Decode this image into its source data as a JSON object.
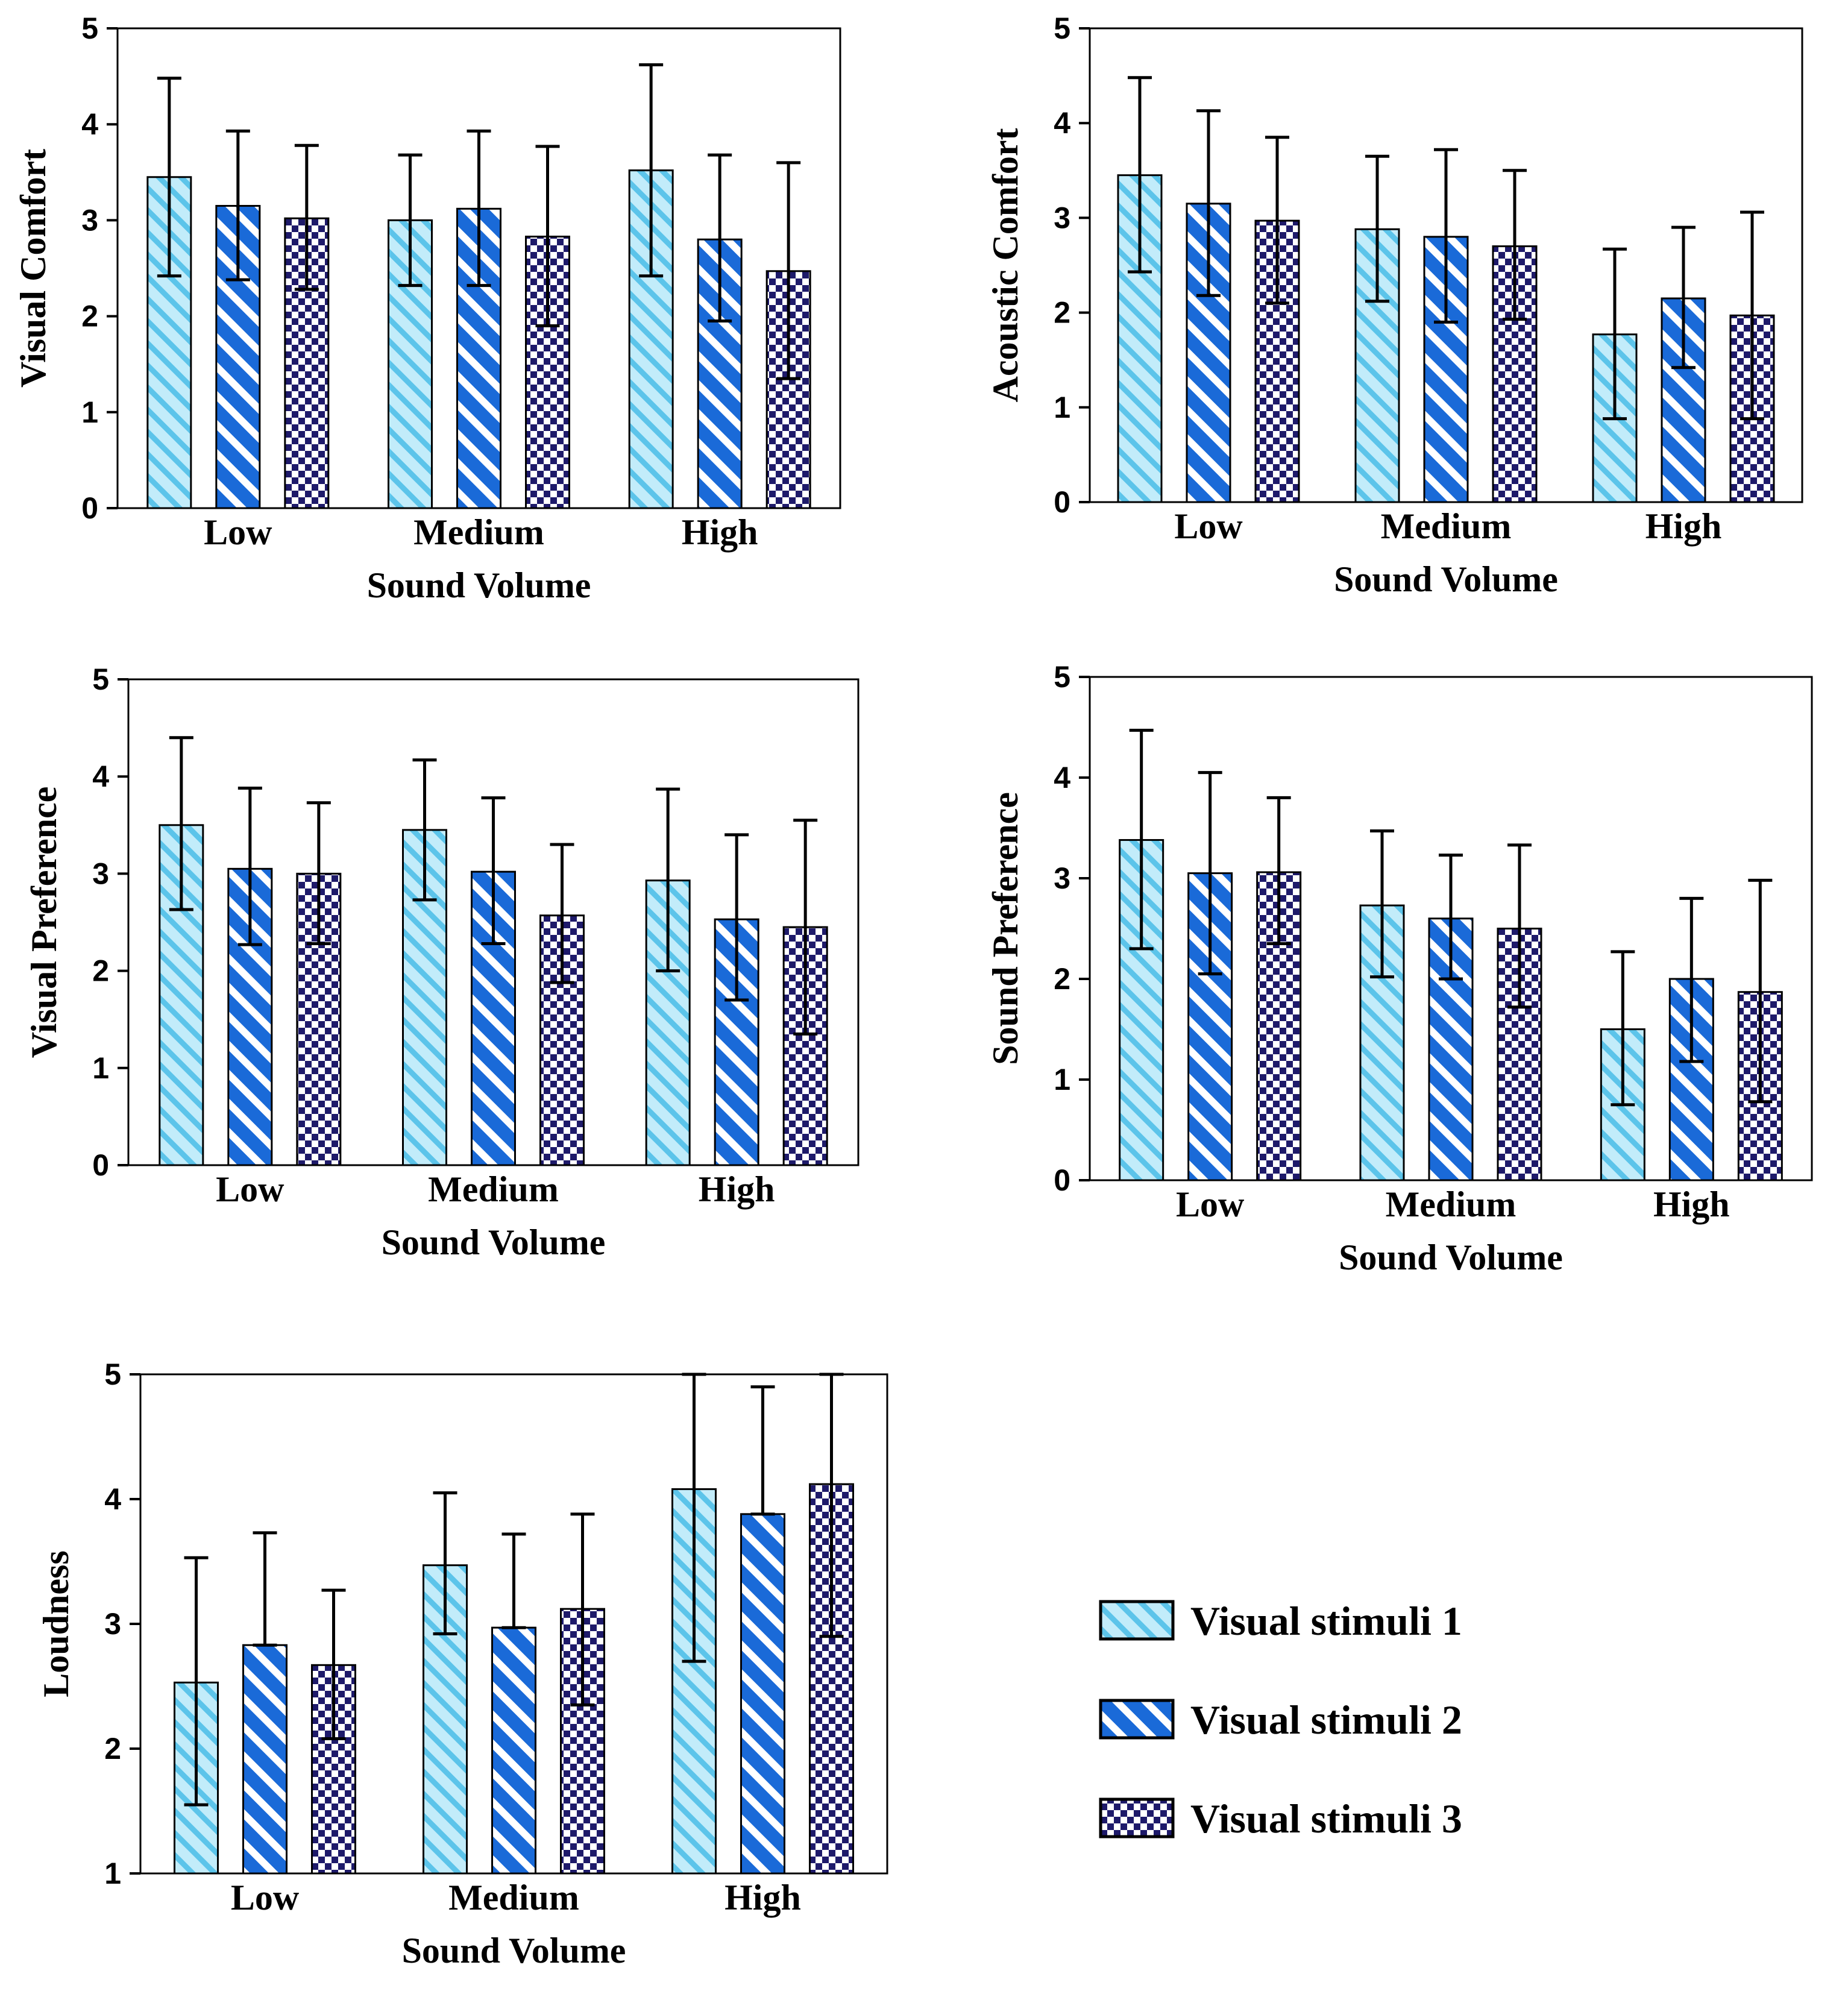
{
  "legend": {
    "series": [
      {
        "name": "Visual stimuli 1",
        "pattern": "stripes-thin",
        "fill": "#c2ecfa",
        "line": "#5cc4ea"
      },
      {
        "name": "Visual stimuli 2",
        "pattern": "stripes-wide",
        "fill": "#ffffff",
        "line": "#1a6ad8"
      },
      {
        "name": "Visual stimuli 3",
        "pattern": "checker",
        "fill": "#ffffff",
        "line": "#1e1a6a"
      }
    ]
  },
  "chart_data": [
    {
      "type": "bar",
      "id": "visual-comfort",
      "title": "",
      "xlabel": "Sound Volume",
      "ylabel": "Visual Comfort",
      "categories": [
        "Low",
        "Medium",
        "High"
      ],
      "ylim": [
        0,
        5
      ],
      "yticks": [
        0,
        1,
        2,
        3,
        4,
        5
      ],
      "series": [
        {
          "name": "Visual stimuli 1",
          "values": [
            3.45,
            3.0,
            3.52
          ],
          "err_low": [
            2.42,
            2.32,
            2.42
          ],
          "err_high": [
            4.48,
            3.68,
            4.62
          ]
        },
        {
          "name": "Visual stimuli 2",
          "values": [
            3.15,
            3.12,
            2.8
          ],
          "err_low": [
            2.38,
            2.32,
            1.95
          ],
          "err_high": [
            3.93,
            3.93,
            3.68
          ]
        },
        {
          "name": "Visual stimuli 3",
          "values": [
            3.02,
            2.83,
            2.47
          ],
          "err_low": [
            2.28,
            1.9,
            1.35
          ],
          "err_high": [
            3.78,
            3.77,
            3.6
          ]
        }
      ]
    },
    {
      "type": "bar",
      "id": "acoustic-comfort",
      "title": "",
      "xlabel": "Sound Volume",
      "ylabel": "Acoustic Comfort",
      "categories": [
        "Low",
        "Medium",
        "High"
      ],
      "ylim": [
        0,
        5
      ],
      "yticks": [
        0,
        1,
        2,
        3,
        4,
        5
      ],
      "series": [
        {
          "name": "Visual stimuli 1",
          "values": [
            3.45,
            2.88,
            1.77
          ],
          "err_low": [
            2.43,
            2.12,
            0.88
          ],
          "err_high": [
            4.48,
            3.65,
            2.67
          ]
        },
        {
          "name": "Visual stimuli 2",
          "values": [
            3.15,
            2.8,
            2.15
          ],
          "err_low": [
            2.18,
            1.9,
            1.42
          ],
          "err_high": [
            4.13,
            3.72,
            2.9
          ]
        },
        {
          "name": "Visual stimuli 3",
          "values": [
            2.97,
            2.7,
            1.97
          ],
          "err_low": [
            2.1,
            1.93,
            0.88
          ],
          "err_high": [
            3.85,
            3.5,
            3.06
          ]
        }
      ]
    },
    {
      "type": "bar",
      "id": "visual-preference",
      "title": "",
      "xlabel": "Sound Volume",
      "ylabel": "Visual Preference",
      "categories": [
        "Low",
        "Medium",
        "High"
      ],
      "ylim": [
        0,
        5
      ],
      "yticks": [
        0,
        1,
        2,
        3,
        4,
        5
      ],
      "series": [
        {
          "name": "Visual stimuli 1",
          "values": [
            3.5,
            3.45,
            2.93
          ],
          "err_low": [
            2.63,
            2.73,
            2.0
          ],
          "err_high": [
            4.4,
            4.17,
            3.87
          ]
        },
        {
          "name": "Visual stimuli 2",
          "values": [
            3.05,
            3.02,
            2.53
          ],
          "err_low": [
            2.27,
            2.28,
            1.7
          ],
          "err_high": [
            3.88,
            3.78,
            3.4
          ]
        },
        {
          "name": "Visual stimuli 3",
          "values": [
            3.0,
            2.57,
            2.45
          ],
          "err_low": [
            2.28,
            1.88,
            1.35
          ],
          "err_high": [
            3.73,
            3.3,
            3.55
          ]
        }
      ]
    },
    {
      "type": "bar",
      "id": "sound-preference",
      "title": "",
      "xlabel": "Sound Volume",
      "ylabel": "Sound Preference",
      "categories": [
        "Low",
        "Medium",
        "High"
      ],
      "ylim": [
        0,
        5
      ],
      "yticks": [
        0,
        1,
        2,
        3,
        4,
        5
      ],
      "series": [
        {
          "name": "Visual stimuli 1",
          "values": [
            3.38,
            2.73,
            1.5
          ],
          "err_low": [
            2.3,
            2.02,
            0.75
          ],
          "err_high": [
            4.47,
            3.47,
            2.27
          ]
        },
        {
          "name": "Visual stimuli 2",
          "values": [
            3.05,
            2.6,
            2.0
          ],
          "err_low": [
            2.05,
            2.0,
            1.18
          ],
          "err_high": [
            4.05,
            3.23,
            2.8
          ]
        },
        {
          "name": "Visual stimuli 3",
          "values": [
            3.06,
            2.5,
            1.87
          ],
          "err_low": [
            2.35,
            1.72,
            0.78
          ],
          "err_high": [
            3.8,
            3.33,
            2.98
          ]
        }
      ]
    },
    {
      "type": "bar",
      "id": "loudness",
      "title": "",
      "xlabel": "Sound Volume",
      "ylabel": "Loudness",
      "categories": [
        "Low",
        "Medium",
        "High"
      ],
      "ylim": [
        1,
        5
      ],
      "yticks": [
        1,
        2,
        3,
        4,
        5
      ],
      "series": [
        {
          "name": "Visual stimuli 1",
          "values": [
            2.53,
            3.47,
            4.08
          ],
          "err_low": [
            1.55,
            2.92,
            2.7
          ],
          "err_high": [
            3.53,
            4.05,
            5.0
          ]
        },
        {
          "name": "Visual stimuli 2",
          "values": [
            2.83,
            2.97,
            3.88
          ],
          "err_low": [
            2.83,
            2.97,
            3.88
          ],
          "err_high": [
            3.73,
            3.72,
            4.9
          ]
        },
        {
          "name": "Visual stimuli 3",
          "values": [
            2.67,
            3.12,
            4.12
          ],
          "err_low": [
            2.08,
            2.35,
            2.9
          ],
          "err_high": [
            3.27,
            3.88,
            5.0
          ]
        }
      ]
    }
  ]
}
